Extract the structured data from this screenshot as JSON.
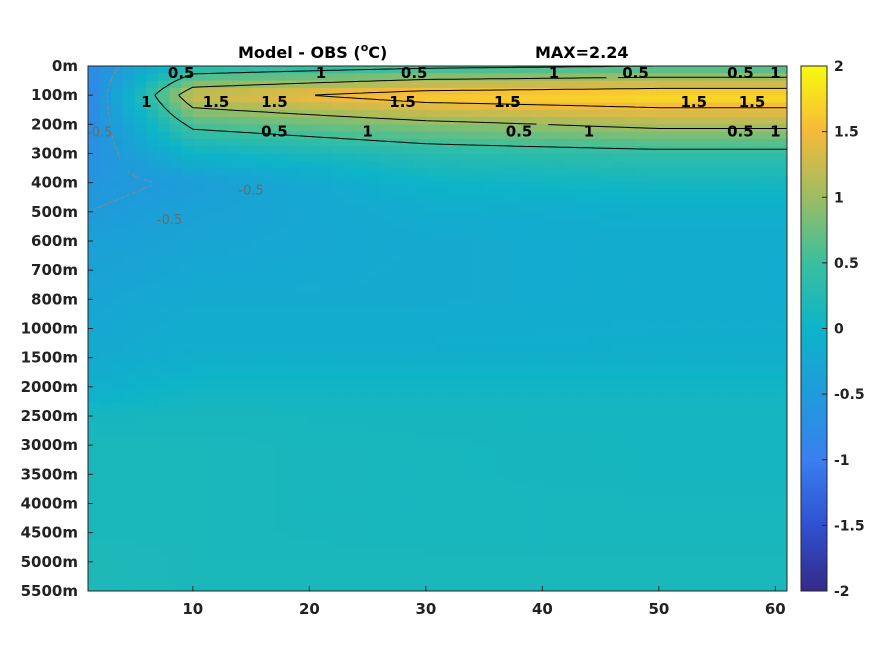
{
  "chart_data": {
    "type": "heatmap",
    "title": "Model - OBS (",
    "title_super": "o",
    "title_unit": "C)",
    "annotation": "MAX=2.24",
    "colormap": "parula",
    "color_range": [
      -2,
      2
    ],
    "xlim": [
      1,
      61
    ],
    "x_ticks": [
      10,
      20,
      30,
      40,
      50,
      60
    ],
    "y_ticks": [
      "0m",
      "100m",
      "200m",
      "300m",
      "400m",
      "500m",
      "600m",
      "700m",
      "800m",
      "1000m",
      "1500m",
      "2000m",
      "2500m",
      "3000m",
      "3500m",
      "4000m",
      "4500m",
      "5000m",
      "5500m"
    ],
    "colorbar_ticks": [
      2,
      1.5,
      1,
      0.5,
      0,
      -0.5,
      -1,
      -1.5,
      -2
    ],
    "contour_levels": [
      -0.5,
      0.5,
      1,
      1.5
    ],
    "depth_profile": {
      "levels": [
        "0m",
        "100m",
        "200m",
        "300m",
        "400m",
        "500m",
        "600m",
        "700m",
        "800m",
        "1000m",
        "1500m",
        "2000m",
        "2500m",
        "3000m",
        "3500m",
        "4000m",
        "4500m",
        "5000m",
        "5500m"
      ],
      "values_west_x1": [
        -0.8,
        -0.9,
        -0.8,
        -0.7,
        -0.6,
        -0.5,
        -0.4,
        -0.35,
        -0.3,
        -0.25,
        -0.2,
        -0.1,
        0.1,
        0.15,
        0.15,
        0.15,
        0.15,
        0.2,
        0.2
      ],
      "values_x10": [
        0.2,
        1.3,
        0.6,
        0.0,
        -0.45,
        -0.35,
        -0.3,
        -0.25,
        -0.2,
        -0.15,
        -0.1,
        0.05,
        0.12,
        0.15,
        0.15,
        0.15,
        0.15,
        0.15,
        0.15
      ],
      "values_x30": [
        0.4,
        1.7,
        0.9,
        0.3,
        0.0,
        -0.15,
        -0.2,
        -0.2,
        -0.2,
        -0.15,
        -0.1,
        0.05,
        0.1,
        0.12,
        0.12,
        0.12,
        0.12,
        0.15,
        0.15
      ],
      "values_x50": [
        0.5,
        1.8,
        1.1,
        0.4,
        0.1,
        -0.1,
        -0.15,
        -0.15,
        -0.15,
        -0.12,
        -0.1,
        0.05,
        0.1,
        0.1,
        0.1,
        0.12,
        0.12,
        0.15,
        0.15
      ]
    },
    "contour_labels": [
      {
        "text": "0.5",
        "x": 9,
        "depth": "0m"
      },
      {
        "text": "1",
        "x": 6,
        "depth": "100m"
      },
      {
        "text": "1.5",
        "x": 12,
        "depth": "100m"
      },
      {
        "text": "1.5",
        "x": 17,
        "depth": "100m"
      },
      {
        "text": "1",
        "x": 21,
        "depth": "0m"
      },
      {
        "text": "0.5",
        "x": 29,
        "depth": "0m"
      },
      {
        "text": "1.5",
        "x": 28,
        "depth": "100m"
      },
      {
        "text": "1.5",
        "x": 37,
        "depth": "100m"
      },
      {
        "text": "1.5",
        "x": 37,
        "depth": "100m"
      },
      {
        "text": "1",
        "x": 41,
        "depth": "0m"
      },
      {
        "text": "0.5",
        "x": 48,
        "depth": "0m"
      },
      {
        "text": "0.5",
        "x": 57,
        "depth": "0m"
      },
      {
        "text": "1",
        "x": 60,
        "depth": "0m"
      },
      {
        "text": "1.5",
        "x": 58,
        "depth": "100m"
      },
      {
        "text": "1.5",
        "x": 53,
        "depth": "100m"
      },
      {
        "text": "1",
        "x": 44,
        "depth": "200m"
      },
      {
        "text": "1",
        "x": 25,
        "depth": "200m"
      },
      {
        "text": "1",
        "x": 60,
        "depth": "200m"
      },
      {
        "text": "0.5",
        "x": 17,
        "depth": "200m"
      },
      {
        "text": "0.5",
        "x": 38,
        "depth": "200m"
      },
      {
        "text": "0.5",
        "x": 57,
        "depth": "200m"
      },
      {
        "text": "-0.5",
        "x": 2,
        "depth": "200m"
      },
      {
        "text": "-0.5",
        "x": 15,
        "depth": "400m"
      },
      {
        "text": "-0.5",
        "x": 8,
        "depth": "500m"
      }
    ]
  }
}
